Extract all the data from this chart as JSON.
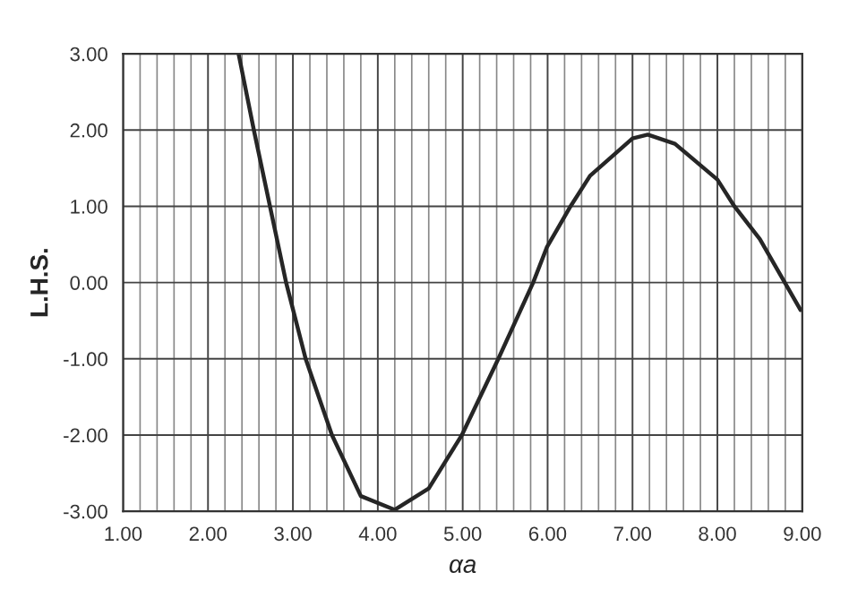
{
  "chart_data": {
    "type": "line",
    "xlabel": "αa",
    "ylabel": "L.H.S.",
    "x": [
      2.36,
      2.54,
      2.73,
      2.92,
      3.15,
      3.46,
      3.8,
      4.2,
      4.6,
      4.99,
      5.42,
      5.83,
      5.99,
      6.27,
      6.5,
      7.0,
      7.18,
      7.5,
      8.0,
      8.2,
      8.5,
      8.98
    ],
    "series": [
      {
        "color": "#262626",
        "values": [
          3.0,
          2.0,
          1.0,
          0.0,
          -1.0,
          -2.0,
          -2.8,
          -2.98,
          -2.7,
          -2.0,
          -1.0,
          0.0,
          0.46,
          1.0,
          1.4,
          1.89,
          1.94,
          1.82,
          1.35,
          1.0,
          0.57,
          -0.36
        ]
      }
    ],
    "xlim": [
      1,
      9
    ],
    "ylim": [
      -3,
      3
    ],
    "xticks": [
      {
        "value": 1,
        "label": "1.00"
      },
      {
        "value": 1.2,
        "label": null
      },
      {
        "value": 1.4,
        "label": null
      },
      {
        "value": 1.6,
        "label": null
      },
      {
        "value": 1.8,
        "label": null
      },
      {
        "value": 2,
        "label": "2.00"
      },
      {
        "value": 2.2,
        "label": null
      },
      {
        "value": 2.4,
        "label": null
      },
      {
        "value": 2.6,
        "label": null
      },
      {
        "value": 2.8,
        "label": null
      },
      {
        "value": 3,
        "label": "3.00"
      },
      {
        "value": 3.2,
        "label": null
      },
      {
        "value": 3.4,
        "label": null
      },
      {
        "value": 3.6,
        "label": null
      },
      {
        "value": 3.8,
        "label": null
      },
      {
        "value": 4,
        "label": "4.00"
      },
      {
        "value": 4.2,
        "label": null
      },
      {
        "value": 4.4,
        "label": null
      },
      {
        "value": 4.6,
        "label": null
      },
      {
        "value": 4.8,
        "label": null
      },
      {
        "value": 5,
        "label": "5.00"
      },
      {
        "value": 5.2,
        "label": null
      },
      {
        "value": 5.4,
        "label": null
      },
      {
        "value": 5.6,
        "label": null
      },
      {
        "value": 5.8,
        "label": null
      },
      {
        "value": 6,
        "label": "6.00"
      },
      {
        "value": 6.2,
        "label": null
      },
      {
        "value": 6.4,
        "label": null
      },
      {
        "value": 6.6,
        "label": null
      },
      {
        "value": 6.8,
        "label": null
      },
      {
        "value": 7,
        "label": "7.00"
      },
      {
        "value": 7.2,
        "label": null
      },
      {
        "value": 7.4,
        "label": null
      },
      {
        "value": 7.6,
        "label": null
      },
      {
        "value": 7.8,
        "label": null
      },
      {
        "value": 8,
        "label": "8.00"
      },
      {
        "value": 8.2,
        "label": null
      },
      {
        "value": 8.4,
        "label": null
      },
      {
        "value": 8.6,
        "label": null
      },
      {
        "value": 8.8,
        "label": null
      },
      {
        "value": 9,
        "label": "9.00"
      }
    ],
    "yticks": [
      {
        "value": -3,
        "label": "-3.00"
      },
      {
        "value": -2,
        "label": "-2.00"
      },
      {
        "value": -1,
        "label": "-1.00"
      },
      {
        "value": 0,
        "label": "0.00"
      },
      {
        "value": 1,
        "label": "1.00"
      },
      {
        "value": 2,
        "label": "2.00"
      },
      {
        "value": 3,
        "label": "3.00"
      }
    ],
    "grid": true,
    "line_style": "solid",
    "marker": "none"
  }
}
